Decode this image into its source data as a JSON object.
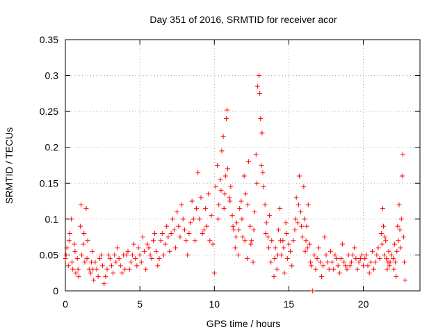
{
  "chart_data": {
    "type": "scatter",
    "title": "Day 351 of 2016, SRMTID for receiver acor",
    "xlabel": "GPS time / hours",
    "ylabel": "SRMTID / TECUs",
    "xlim": [
      0,
      23.8
    ],
    "ylim": [
      0,
      0.35
    ],
    "xticks": [
      0,
      5,
      10,
      15,
      20
    ],
    "xtick_labels": [
      "0",
      "5",
      "10",
      "15",
      "20"
    ],
    "yticks": [
      0,
      0.05,
      0.1,
      0.15,
      0.2,
      0.25,
      0.3,
      0.35
    ],
    "ytick_labels": [
      "0",
      "0.05",
      "0.1",
      "0.15",
      "0.2",
      "0.25",
      "0.3",
      "0.35"
    ],
    "grid": true,
    "marker": "plus",
    "color": "#ff0000",
    "series": [
      {
        "name": "SRMTID",
        "points": [
          [
            0.0,
            0.045
          ],
          [
            0.1,
            0.06
          ],
          [
            0.2,
            0.035
          ],
          [
            0.3,
            0.08
          ],
          [
            0.4,
            0.1
          ],
          [
            0.5,
            0.03
          ],
          [
            0.6,
            0.065
          ],
          [
            0.7,
            0.025
          ],
          [
            0.8,
            0.045
          ],
          [
            0.9,
            0.02
          ],
          [
            1.0,
            0.09
          ],
          [
            1.05,
            0.12
          ],
          [
            1.1,
            0.05
          ],
          [
            1.3,
            0.04
          ],
          [
            1.4,
            0.115
          ],
          [
            1.5,
            0.07
          ],
          [
            1.6,
            0.03
          ],
          [
            1.7,
            0.025
          ],
          [
            1.8,
            0.055
          ],
          [
            1.9,
            0.015
          ],
          [
            2.0,
            0.04
          ],
          [
            2.2,
            0.02
          ],
          [
            2.4,
            0.05
          ],
          [
            2.5,
            0.035
          ],
          [
            2.6,
            0.01
          ],
          [
            2.8,
            0.03
          ],
          [
            3.0,
            0.045
          ],
          [
            3.2,
            0.025
          ],
          [
            3.4,
            0.04
          ],
          [
            3.5,
            0.06
          ],
          [
            3.7,
            0.035
          ],
          [
            3.9,
            0.05
          ],
          [
            4.0,
            0.03
          ],
          [
            4.2,
            0.055
          ],
          [
            4.4,
            0.04
          ],
          [
            4.6,
            0.065
          ],
          [
            4.8,
            0.035
          ],
          [
            5.0,
            0.05
          ],
          [
            5.2,
            0.075
          ],
          [
            5.4,
            0.03
          ],
          [
            5.6,
            0.06
          ],
          [
            5.8,
            0.045
          ],
          [
            6.0,
            0.08
          ],
          [
            6.2,
            0.035
          ],
          [
            6.4,
            0.07
          ],
          [
            6.6,
            0.05
          ],
          [
            6.8,
            0.09
          ],
          [
            7.0,
            0.055
          ],
          [
            7.2,
            0.1
          ],
          [
            7.4,
            0.06
          ],
          [
            7.5,
            0.11
          ],
          [
            7.7,
            0.075
          ],
          [
            7.8,
            0.12
          ],
          [
            8.0,
            0.085
          ],
          [
            8.2,
            0.05
          ],
          [
            8.4,
            0.095
          ],
          [
            8.5,
            0.125
          ],
          [
            8.7,
            0.07
          ],
          [
            8.9,
            0.165
          ],
          [
            9.0,
            0.1
          ],
          [
            9.2,
            0.08
          ],
          [
            9.4,
            0.115
          ],
          [
            9.5,
            0.09
          ],
          [
            9.6,
            0.135
          ],
          [
            9.7,
            0.07
          ],
          [
            9.8,
            0.105
          ],
          [
            10.0,
            0.025
          ],
          [
            10.1,
            0.145
          ],
          [
            10.2,
            0.175
          ],
          [
            10.3,
            0.12
          ],
          [
            10.4,
            0.155
          ],
          [
            10.5,
            0.195
          ],
          [
            10.6,
            0.215
          ],
          [
            10.7,
            0.135
          ],
          [
            10.8,
            0.24
          ],
          [
            10.85,
            0.252
          ],
          [
            10.9,
            0.17
          ],
          [
            11.0,
            0.13
          ],
          [
            11.1,
            0.145
          ],
          [
            11.2,
            0.105
          ],
          [
            11.3,
            0.085
          ],
          [
            11.4,
            0.06
          ],
          [
            11.5,
            0.095
          ],
          [
            11.6,
            0.05
          ],
          [
            11.7,
            0.115
          ],
          [
            11.8,
            0.125
          ],
          [
            11.9,
            0.075
          ],
          [
            12.0,
            0.16
          ],
          [
            12.1,
            0.135
          ],
          [
            12.2,
            0.045
          ],
          [
            12.3,
            0.18
          ],
          [
            12.4,
            0.09
          ],
          [
            12.5,
            0.07
          ],
          [
            12.6,
            0.04
          ],
          [
            12.7,
            0.11
          ],
          [
            12.8,
            0.19
          ],
          [
            12.9,
            0.285
          ],
          [
            13.0,
            0.3
          ],
          [
            13.05,
            0.275
          ],
          [
            13.1,
            0.24
          ],
          [
            13.2,
            0.22
          ],
          [
            13.3,
            0.145
          ],
          [
            13.4,
            0.12
          ],
          [
            13.5,
            0.095
          ],
          [
            13.6,
            0.075
          ],
          [
            13.7,
            0.105
          ],
          [
            13.8,
            0.04
          ],
          [
            14.0,
            0.02
          ],
          [
            14.1,
            0.06
          ],
          [
            14.2,
            0.03
          ],
          [
            14.3,
            0.085
          ],
          [
            14.4,
            0.115
          ],
          [
            14.5,
            0.05
          ],
          [
            14.6,
            0.07
          ],
          [
            14.7,
            0.025
          ],
          [
            14.8,
            0.095
          ],
          [
            14.9,
            0.045
          ],
          [
            15.0,
            0.065
          ],
          [
            15.2,
            0.035
          ],
          [
            15.4,
            0.085
          ],
          [
            15.5,
            0.13
          ],
          [
            15.6,
            0.095
          ],
          [
            15.7,
            0.16
          ],
          [
            15.8,
            0.11
          ],
          [
            15.9,
            0.075
          ],
          [
            16.0,
            0.145
          ],
          [
            16.1,
            0.055
          ],
          [
            16.2,
            0.09
          ],
          [
            16.3,
            0.12
          ],
          [
            16.4,
            0.065
          ],
          [
            16.5,
            0.035
          ],
          [
            16.6,
            0.0
          ],
          [
            16.7,
            0.05
          ],
          [
            16.8,
            0.03
          ],
          [
            17.0,
            0.06
          ],
          [
            17.2,
            0.02
          ],
          [
            17.4,
            0.075
          ],
          [
            17.6,
            0.04
          ],
          [
            17.8,
            0.055
          ],
          [
            18.0,
            0.03
          ],
          [
            18.2,
            0.045
          ],
          [
            18.4,
            0.025
          ],
          [
            18.6,
            0.065
          ],
          [
            18.8,
            0.035
          ],
          [
            19.0,
            0.05
          ],
          [
            19.2,
            0.04
          ],
          [
            19.4,
            0.06
          ],
          [
            19.6,
            0.03
          ],
          [
            19.8,
            0.045
          ],
          [
            20.0,
            0.035
          ],
          [
            20.2,
            0.05
          ],
          [
            20.4,
            0.025
          ],
          [
            20.6,
            0.055
          ],
          [
            20.8,
            0.04
          ],
          [
            21.0,
            0.06
          ],
          [
            21.2,
            0.08
          ],
          [
            21.3,
            0.115
          ],
          [
            21.4,
            0.05
          ],
          [
            21.5,
            0.07
          ],
          [
            21.6,
            0.03
          ],
          [
            21.7,
            0.055
          ],
          [
            21.8,
            0.04
          ],
          [
            22.0,
            0.045
          ],
          [
            22.1,
            0.065
          ],
          [
            22.2,
            0.02
          ],
          [
            22.3,
            0.09
          ],
          [
            22.4,
            0.12
          ],
          [
            22.5,
            0.06
          ],
          [
            22.6,
            0.16
          ],
          [
            22.65,
            0.19
          ],
          [
            22.7,
            0.075
          ],
          [
            22.8,
            0.015
          ],
          [
            0.05,
            0.05
          ],
          [
            0.25,
            0.07
          ],
          [
            0.45,
            0.04
          ],
          [
            0.65,
            0.055
          ],
          [
            0.85,
            0.03
          ],
          [
            1.2,
            0.065
          ],
          [
            1.25,
            0.08
          ],
          [
            1.45,
            0.045
          ],
          [
            1.75,
            0.04
          ],
          [
            1.85,
            0.03
          ],
          [
            2.1,
            0.03
          ],
          [
            2.3,
            0.045
          ],
          [
            2.7,
            0.02
          ],
          [
            2.9,
            0.05
          ],
          [
            3.1,
            0.035
          ],
          [
            3.3,
            0.05
          ],
          [
            3.6,
            0.045
          ],
          [
            3.8,
            0.025
          ],
          [
            4.1,
            0.05
          ],
          [
            4.3,
            0.03
          ],
          [
            4.5,
            0.05
          ],
          [
            4.7,
            0.045
          ],
          [
            4.9,
            0.06
          ],
          [
            5.1,
            0.04
          ],
          [
            5.3,
            0.055
          ],
          [
            5.5,
            0.065
          ],
          [
            5.7,
            0.05
          ],
          [
            5.9,
            0.07
          ],
          [
            6.1,
            0.055
          ],
          [
            6.3,
            0.045
          ],
          [
            6.5,
            0.08
          ],
          [
            6.7,
            0.065
          ],
          [
            6.9,
            0.075
          ],
          [
            7.1,
            0.08
          ],
          [
            7.3,
            0.085
          ],
          [
            7.6,
            0.09
          ],
          [
            7.9,
            0.1
          ],
          [
            8.1,
            0.07
          ],
          [
            8.3,
            0.08
          ],
          [
            8.6,
            0.1
          ],
          [
            8.8,
            0.115
          ],
          [
            9.1,
            0.13
          ],
          [
            9.3,
            0.085
          ],
          [
            9.9,
            0.065
          ],
          [
            10.25,
            0.1
          ],
          [
            10.45,
            0.14
          ],
          [
            10.65,
            0.115
          ],
          [
            10.75,
            0.16
          ],
          [
            11.05,
            0.125
          ],
          [
            11.25,
            0.09
          ],
          [
            11.45,
            0.075
          ],
          [
            11.65,
            0.085
          ],
          [
            11.85,
            0.1
          ],
          [
            12.05,
            0.07
          ],
          [
            12.25,
            0.12
          ],
          [
            12.45,
            0.065
          ],
          [
            12.65,
            0.085
          ],
          [
            12.85,
            0.15
          ],
          [
            13.15,
            0.175
          ],
          [
            13.25,
            0.165
          ],
          [
            13.45,
            0.08
          ],
          [
            13.65,
            0.06
          ],
          [
            13.85,
            0.07
          ],
          [
            14.05,
            0.045
          ],
          [
            14.25,
            0.05
          ],
          [
            14.45,
            0.07
          ],
          [
            14.65,
            0.06
          ],
          [
            14.85,
            0.08
          ],
          [
            15.1,
            0.055
          ],
          [
            15.3,
            0.07
          ],
          [
            15.45,
            0.1
          ],
          [
            15.65,
            0.12
          ],
          [
            15.85,
            0.09
          ],
          [
            16.05,
            0.1
          ],
          [
            16.15,
            0.07
          ],
          [
            16.25,
            0.06
          ],
          [
            16.45,
            0.04
          ],
          [
            16.9,
            0.045
          ],
          [
            17.1,
            0.04
          ],
          [
            17.3,
            0.035
          ],
          [
            17.5,
            0.05
          ],
          [
            17.7,
            0.03
          ],
          [
            17.9,
            0.04
          ],
          [
            18.1,
            0.05
          ],
          [
            18.3,
            0.035
          ],
          [
            18.5,
            0.045
          ],
          [
            18.7,
            0.04
          ],
          [
            18.9,
            0.03
          ],
          [
            19.1,
            0.035
          ],
          [
            19.3,
            0.05
          ],
          [
            19.5,
            0.045
          ],
          [
            19.7,
            0.04
          ],
          [
            19.9,
            0.05
          ],
          [
            20.1,
            0.045
          ],
          [
            20.3,
            0.035
          ],
          [
            20.5,
            0.04
          ],
          [
            20.7,
            0.03
          ],
          [
            20.9,
            0.05
          ],
          [
            21.1,
            0.045
          ],
          [
            21.25,
            0.065
          ],
          [
            21.35,
            0.09
          ],
          [
            21.45,
            0.075
          ],
          [
            21.55,
            0.045
          ],
          [
            21.65,
            0.04
          ],
          [
            21.75,
            0.035
          ],
          [
            21.9,
            0.05
          ],
          [
            22.05,
            0.03
          ],
          [
            22.15,
            0.04
          ],
          [
            22.25,
            0.055
          ],
          [
            22.35,
            0.07
          ],
          [
            22.45,
            0.085
          ],
          [
            22.55,
            0.1
          ],
          [
            22.75,
            0.04
          ]
        ]
      }
    ]
  }
}
